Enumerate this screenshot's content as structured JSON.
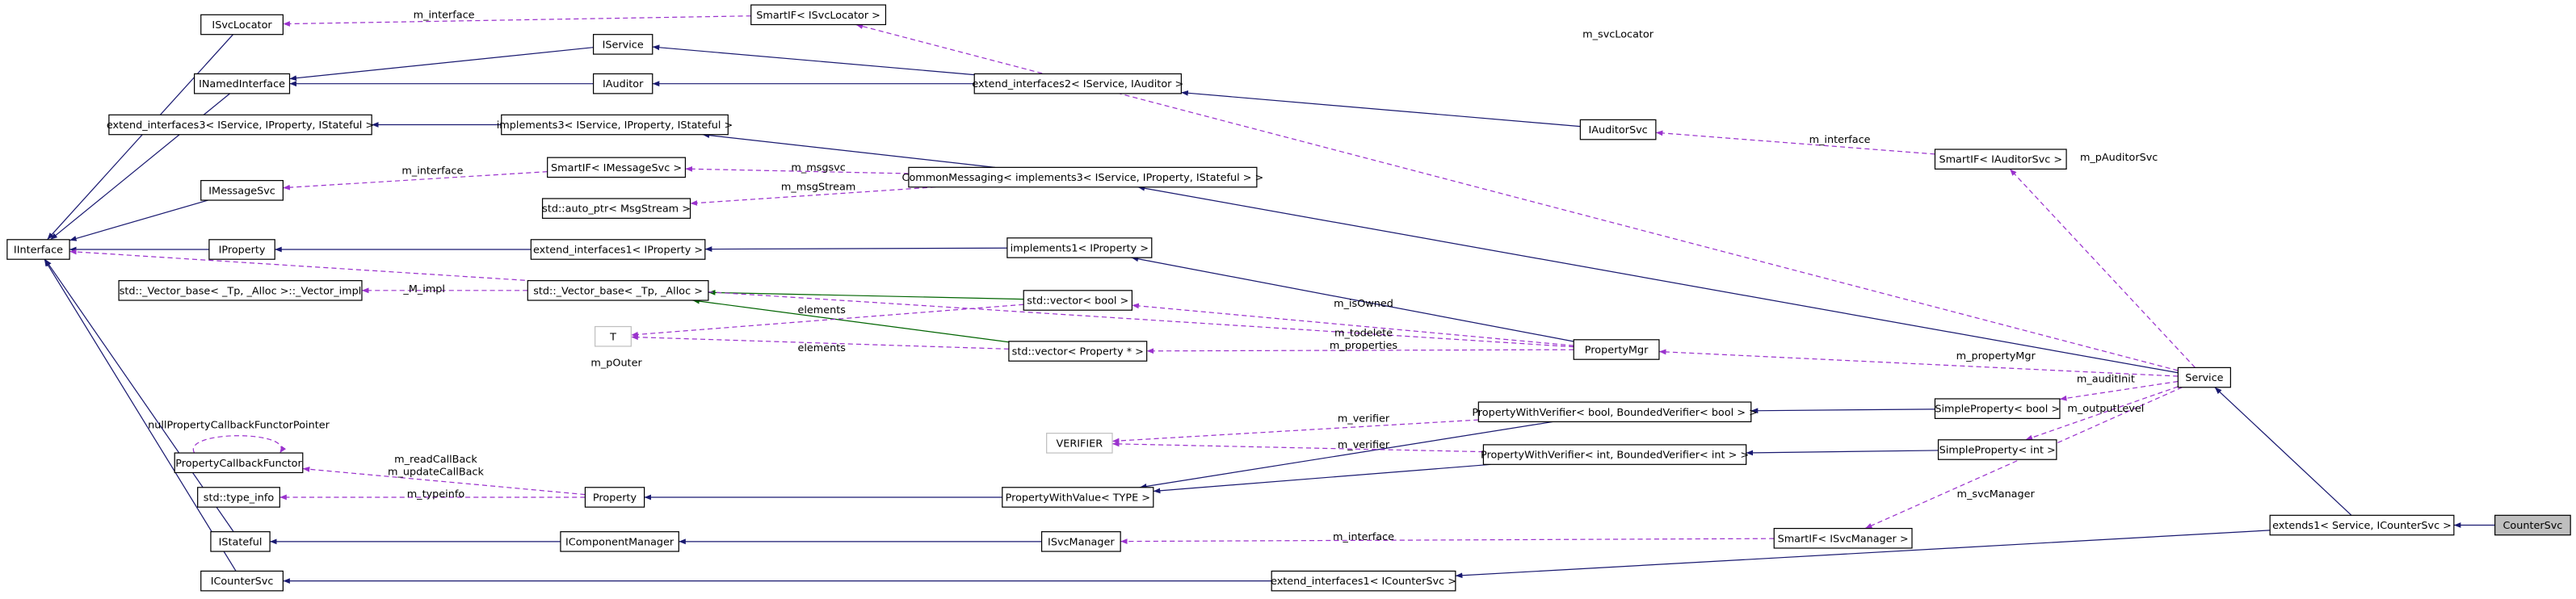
{
  "nodes": [
    "ISvcLocator",
    "SmartIF< ISvcLocator >",
    "IService",
    "INamedInterface",
    "IAuditor",
    "extend_interfaces2< IService, IAuditor >",
    "extend_interfaces3< IService, IProperty, IStateful >",
    "implements3< IService, IProperty, IStateful >",
    "IAuditorSvc",
    "SmartIF< IMessageSvc >",
    "CommonMessaging< implements3< IService, IProperty, IStateful > >",
    "SmartIF< IAuditorSvc >",
    "IMessageSvc",
    "std::auto_ptr< MsgStream >",
    "IInterface",
    "IProperty",
    "extend_interfaces1< IProperty >",
    "implements1< IProperty >",
    "std::_Vector_base< _Tp, _Alloc >::_Vector_impl",
    "std::_Vector_base< _Tp, _Alloc >",
    "std::vector< bool >",
    "T",
    "std::vector< Property * >",
    "PropertyMgr",
    "Service",
    "SimpleProperty< bool >",
    "PropertyWithVerifier< bool, BoundedVerifier< bool > >",
    "VERIFIER",
    "SimpleProperty< int >",
    "PropertyWithVerifier< int, BoundedVerifier< int > >",
    "PropertyCallbackFunctor",
    "std::type_info",
    "Property",
    "PropertyWithValue< TYPE >",
    "extends1< Service, ICounterSvc >",
    "CounterSvc",
    "IStateful",
    "IComponentManager",
    "ISvcManager",
    "SmartIF< ISvcManager >",
    "ICounterSvc",
    "extend_interfaces1< ICounterSvc >"
  ],
  "edge_labels": [
    "m_interface",
    "m_svcLocator",
    "m_interface",
    "m_pAuditorSvc",
    "m_interface",
    "m_msgsvc",
    "m_msgStream",
    "_M_impl",
    "elements",
    "elements",
    "m_isOwned",
    "m_todelete\nm_properties",
    "m_pOuter",
    "m_propertyMgr",
    "m_auditInit",
    "m_verifier",
    "m_outputLevel",
    "m_verifier",
    "nullPropertyCallbackFunctorPointer",
    "m_readCallBack\nm_updateCallBack",
    "m_typeinfo",
    "m_svcManager",
    "m_interface"
  ]
}
